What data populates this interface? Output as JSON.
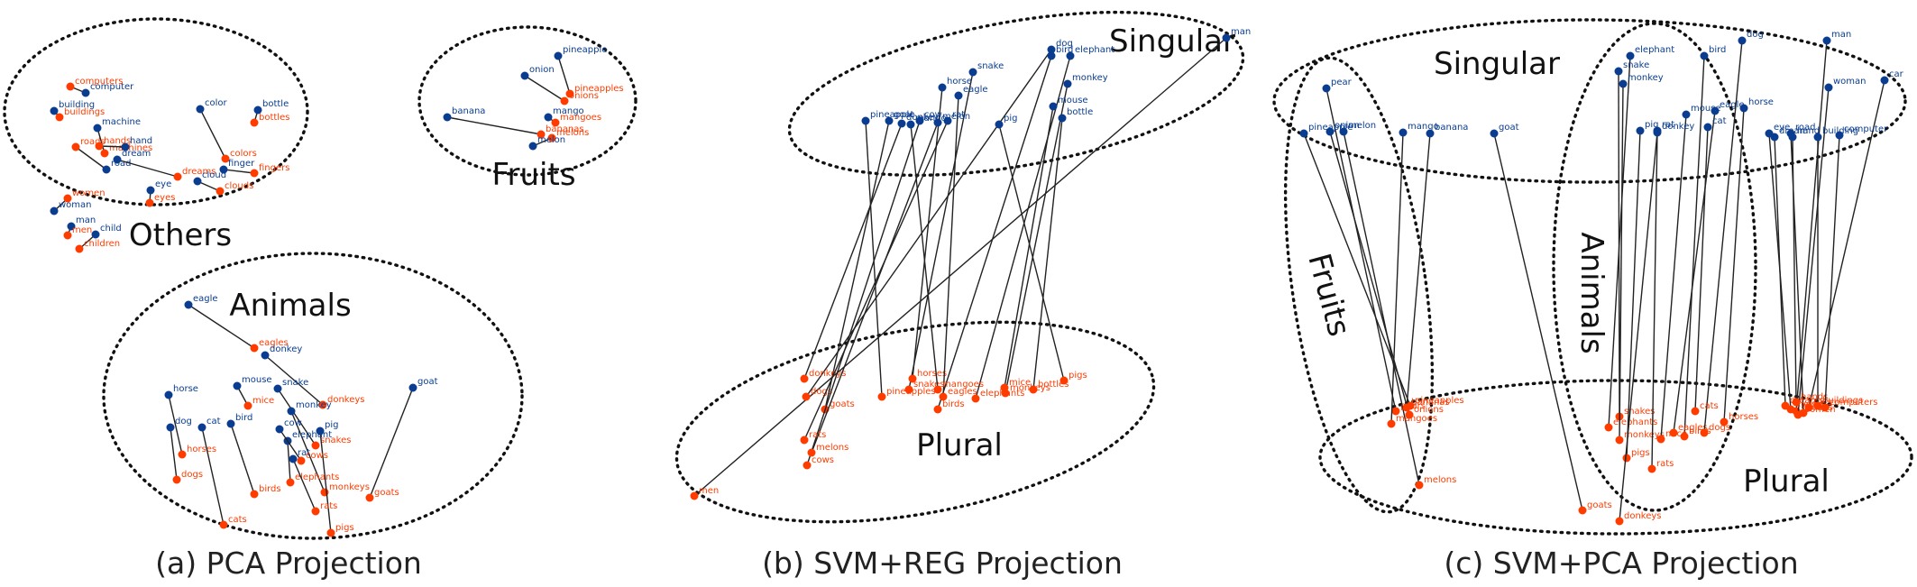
{
  "figure": {
    "colors": {
      "singular": "#0a3d8f",
      "plural": "#ff3c00",
      "line": "#222222"
    }
  },
  "chart_data": [
    {
      "type": "scatter",
      "title": "(a) PCA Projection",
      "groups": [
        "Others",
        "Fruits",
        "Animals"
      ],
      "pairs": [
        {
          "s": "color",
          "p": "colors"
        },
        {
          "s": "bottle",
          "p": "bottles"
        },
        {
          "s": "computer",
          "p": "computers"
        },
        {
          "s": "building",
          "p": "buildings"
        },
        {
          "s": "machine",
          "p": "machines"
        },
        {
          "s": "hand",
          "p": "hands"
        },
        {
          "s": "road",
          "p": "roads"
        },
        {
          "s": "dream",
          "p": "dreams"
        },
        {
          "s": "eye",
          "p": "eyes"
        },
        {
          "s": "finger",
          "p": "fingers"
        },
        {
          "s": "cloud",
          "p": "clouds"
        },
        {
          "s": "woman",
          "p": "women"
        },
        {
          "s": "man",
          "p": "men"
        },
        {
          "s": "child",
          "p": "children"
        },
        {
          "s": "banana",
          "p": "bananas"
        },
        {
          "s": "onion",
          "p": "onions"
        },
        {
          "s": "pineapple",
          "p": "pineapples"
        },
        {
          "s": "mango",
          "p": "mangoes"
        },
        {
          "s": "melon",
          "p": "melons"
        },
        {
          "s": "eagle",
          "p": "eagles"
        },
        {
          "s": "donkey",
          "p": "donkeys"
        },
        {
          "s": "horse",
          "p": "horses"
        },
        {
          "s": "mouse",
          "p": "mice"
        },
        {
          "s": "snake",
          "p": "snakes"
        },
        {
          "s": "dog",
          "p": "dogs"
        },
        {
          "s": "cat",
          "p": "cats"
        },
        {
          "s": "bird",
          "p": "birds"
        },
        {
          "s": "monkey",
          "p": "monkeys"
        },
        {
          "s": "pig",
          "p": "pigs"
        },
        {
          "s": "elephant",
          "p": "elephants"
        },
        {
          "s": "rat",
          "p": "rats"
        },
        {
          "s": "cow",
          "p": "cows"
        },
        {
          "s": "goat",
          "p": "goats"
        }
      ]
    },
    {
      "type": "scatter",
      "title": "(b) SVM+REG Projection",
      "groups": [
        "Singular",
        "Plural"
      ],
      "pairs": [
        {
          "s": "man",
          "p": "men"
        },
        {
          "s": "dog",
          "p": "dogs"
        },
        {
          "s": "bird",
          "p": "birds"
        },
        {
          "s": "elephant",
          "p": "elephants"
        },
        {
          "s": "snake",
          "p": "snakes"
        },
        {
          "s": "horse",
          "p": "horses"
        },
        {
          "s": "eagle",
          "p": "eagles"
        },
        {
          "s": "monkey",
          "p": "monkeys"
        },
        {
          "s": "mouse",
          "p": "mice"
        },
        {
          "s": "bottle",
          "p": "bottles"
        },
        {
          "s": "pineapple",
          "p": "pineapples"
        },
        {
          "s": "goat",
          "p": "goats"
        },
        {
          "s": "donkey",
          "p": "donkeys"
        },
        {
          "s": "cow",
          "p": "cows"
        },
        {
          "s": "melon",
          "p": "melons"
        },
        {
          "s": "rat",
          "p": "rats"
        },
        {
          "s": "pig",
          "p": "pigs"
        },
        {
          "s": "mango",
          "p": "mangoes"
        }
      ]
    },
    {
      "type": "scatter",
      "title": "(c) SVM+PCA Projection",
      "groups": [
        "Singular",
        "Plural",
        "Fruits",
        "Animals"
      ],
      "pairs": [
        {
          "s": "pear",
          "p": "pears"
        },
        {
          "s": "pineapple",
          "p": "pineapples"
        },
        {
          "s": "onion",
          "p": "onions"
        },
        {
          "s": "melon",
          "p": "melons"
        },
        {
          "s": "banana",
          "p": "bananas"
        },
        {
          "s": "goat",
          "p": "goats"
        },
        {
          "s": "elephant",
          "p": "elephants"
        },
        {
          "s": "snake",
          "p": "snakes"
        },
        {
          "s": "monkey",
          "p": "monkeys"
        },
        {
          "s": "bird",
          "p": "birds"
        },
        {
          "s": "eagle",
          "p": "eagles"
        },
        {
          "s": "mouse",
          "p": "mice"
        },
        {
          "s": "dog",
          "p": "dogs"
        },
        {
          "s": "horse",
          "p": "horses"
        },
        {
          "s": "cat",
          "p": "cats"
        },
        {
          "s": "rat",
          "p": "rats"
        },
        {
          "s": "pig",
          "p": "pigs"
        },
        {
          "s": "donkey",
          "p": "donkeys"
        },
        {
          "s": "man",
          "p": "men"
        },
        {
          "s": "woman",
          "p": "women"
        },
        {
          "s": "car",
          "p": "cars"
        },
        {
          "s": "eye",
          "p": "eyes"
        },
        {
          "s": "road",
          "p": "roads"
        },
        {
          "s": "dream",
          "p": "dreams"
        },
        {
          "s": "hand",
          "p": "hands"
        },
        {
          "s": "building",
          "p": "buildings"
        },
        {
          "s": "computer",
          "p": "computers"
        },
        {
          "s": "mango",
          "p": "mangoes"
        }
      ]
    }
  ]
}
